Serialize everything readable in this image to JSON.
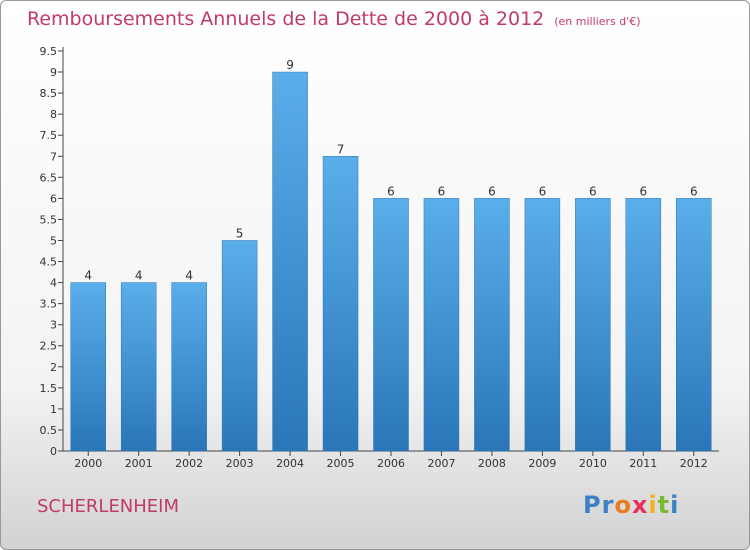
{
  "chart_data": {
    "type": "bar",
    "title": "Remboursements Annuels de la Dette de 2000 à 2012",
    "subtitle": "(en milliers d'€)",
    "categories": [
      "2000",
      "2001",
      "2002",
      "2003",
      "2004",
      "2005",
      "2006",
      "2007",
      "2008",
      "2009",
      "2010",
      "2011",
      "2012"
    ],
    "values": [
      4,
      4,
      4,
      5,
      9,
      7,
      6,
      6,
      6,
      6,
      6,
      6,
      6
    ],
    "data_labels": [
      "4",
      "4",
      "4",
      "5",
      "9",
      "7",
      "6",
      "6",
      "6",
      "6",
      "6",
      "6",
      "6"
    ],
    "yticks": [
      "0",
      "0.5",
      "1",
      "1.5",
      "2",
      "2.5",
      "3",
      "3.5",
      "4",
      "4.5",
      "5",
      "5.5",
      "6",
      "6.5",
      "7",
      "7.5",
      "8",
      "8.5",
      "9",
      "9.5"
    ],
    "ylim": [
      0,
      9.5
    ],
    "grid": false,
    "bar_color": "#3a8fd6"
  },
  "footer": {
    "commune": "SCHERLENHEIM",
    "logo": {
      "letters": [
        "P",
        "r",
        "o",
        "x",
        "i",
        "t",
        "i"
      ],
      "colors": [
        "#3c82c4",
        "#3c82c4",
        "#e87c1e",
        "#e8305a",
        "#f2b21d",
        "#7ab830",
        "#3c82c4"
      ]
    }
  }
}
